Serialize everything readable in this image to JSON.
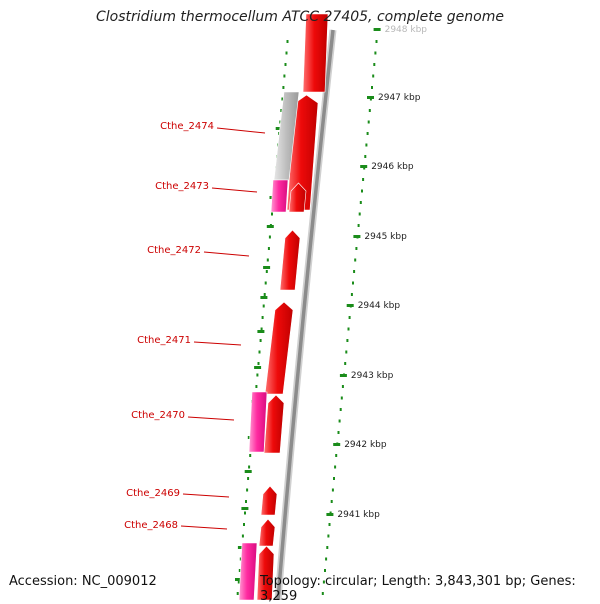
{
  "title": "Clostridium thermocellum ATCC 27405, complete genome",
  "accession": "Accession: NC_009012",
  "topology": "Topology: circular; Length: 3,843,301 bp; Genes: 3,259",
  "colors": {
    "cds": "#e8000a",
    "cds_highlight": "#ff6b6b",
    "other_gene": "#ff1493",
    "other_gene_highlight": "#ff8fcf",
    "unknown_gene": "#b4b4b4",
    "backbone": "#8c8c8c",
    "tick": "#1a8c1a",
    "label": "#cc0000",
    "ruler_text": "#222222"
  },
  "ruler_labels": [
    "2948 kbp",
    "2947 kbp",
    "2946 kbp",
    "2945 kbp",
    "2944 kbp",
    "2943 kbp",
    "2942 kbp",
    "2941 kbp"
  ],
  "gene_labels": [
    "Cthe_2474",
    "Cthe_2473",
    "Cthe_2472",
    "Cthe_2471",
    "Cthe_2470",
    "Cthe_2469",
    "Cthe_2468"
  ]
}
